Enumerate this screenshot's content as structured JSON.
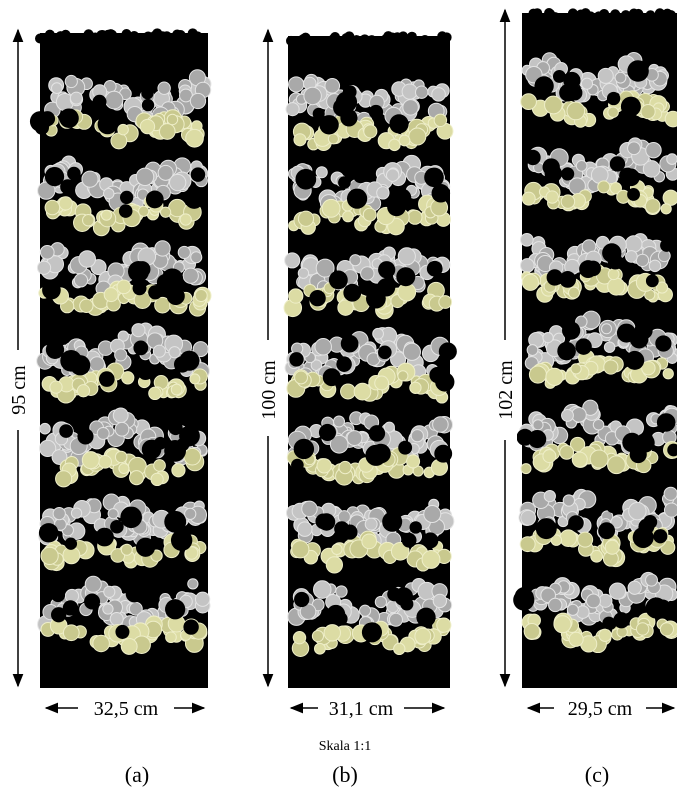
{
  "panels": [
    {
      "height_label": "95 cm",
      "width_label": "32,5 cm",
      "caption": "(a)"
    },
    {
      "height_label": "100 cm",
      "width_label": "31,1 cm",
      "caption": "(b)"
    },
    {
      "height_label": "102 cm",
      "width_label": "29,5 cm",
      "caption": "(c)"
    }
  ],
  "scale_note": "Skala 1:1"
}
